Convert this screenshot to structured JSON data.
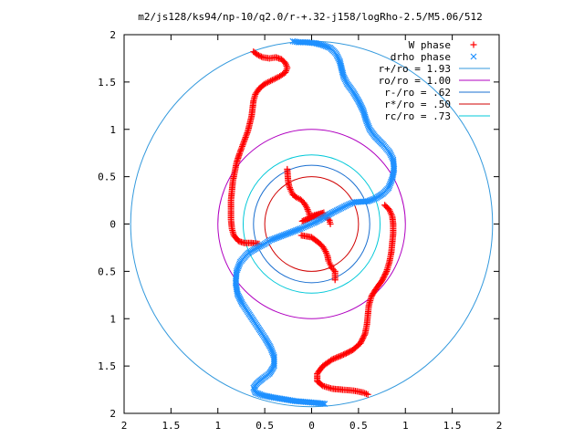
{
  "chart_data": {
    "type": "scatter",
    "title": "m2/js128/ks94/np-10/q2.0/r-+.32-j158/logRho-2.5/M5.06/512",
    "xlim": [
      -2,
      2
    ],
    "ylim": [
      -2,
      2
    ],
    "x_tick_labels": [
      "2",
      "1.5",
      "1",
      "0.5",
      "0",
      "0.5",
      "1",
      "1.5",
      "2"
    ],
    "y_tick_labels": [
      "2",
      "1.5",
      "1",
      "0.5",
      "0",
      "0.5",
      "1",
      "1.5",
      "2"
    ],
    "grid": false,
    "legend_position": "top-right",
    "colors": {
      "w_phase": "#ff0000",
      "drho_phase": "#1e90ff",
      "r_plus": "#3399dd",
      "ro": "#b000c0",
      "r_minus": "#1a6fd0",
      "r_star": "#d00000",
      "rc": "#00c8d8"
    },
    "circles": [
      {
        "label": "r+/ro = 1.93",
        "radius": 1.93
      },
      {
        "label": "ro/ro = 1.00",
        "radius": 1.0
      },
      {
        "label": "r-/ro = .62",
        "radius": 0.62
      },
      {
        "label": "r*/ro = .50",
        "radius": 0.5
      },
      {
        "label": "rc/ro = .73",
        "radius": 0.73
      }
    ],
    "series": [
      {
        "name": "W phase",
        "marker": "+",
        "points": [
          [
            -0.62,
            1.82
          ],
          [
            -0.58,
            1.79
          ],
          [
            -0.52,
            1.76
          ],
          [
            -0.45,
            1.75
          ],
          [
            -0.38,
            1.76
          ],
          [
            -0.32,
            1.74
          ],
          [
            -0.28,
            1.7
          ],
          [
            -0.26,
            1.65
          ],
          [
            -0.28,
            1.6
          ],
          [
            -0.34,
            1.56
          ],
          [
            -0.42,
            1.52
          ],
          [
            -0.5,
            1.48
          ],
          [
            -0.56,
            1.43
          ],
          [
            -0.6,
            1.37
          ],
          [
            -0.62,
            1.3
          ],
          [
            -0.63,
            1.22
          ],
          [
            -0.64,
            1.14
          ],
          [
            -0.66,
            1.06
          ],
          [
            -0.68,
            0.98
          ],
          [
            -0.71,
            0.9
          ],
          [
            -0.74,
            0.82
          ],
          [
            -0.77,
            0.74
          ],
          [
            -0.8,
            0.65
          ],
          [
            -0.82,
            0.55
          ],
          [
            -0.84,
            0.45
          ],
          [
            -0.85,
            0.35
          ],
          [
            -0.86,
            0.25
          ],
          [
            -0.86,
            0.15
          ],
          [
            -0.86,
            0.05
          ],
          [
            -0.85,
            -0.05
          ],
          [
            -0.83,
            -0.12
          ],
          [
            -0.78,
            -0.18
          ],
          [
            -0.72,
            -0.2
          ],
          [
            -0.64,
            -0.2
          ],
          [
            -0.56,
            -0.21
          ],
          [
            -0.26,
            0.58
          ],
          [
            -0.25,
            0.45
          ],
          [
            -0.24,
            0.4
          ],
          [
            -0.22,
            0.35
          ],
          [
            -0.2,
            0.31
          ],
          [
            -0.16,
            0.28
          ],
          [
            -0.12,
            0.26
          ],
          [
            -0.08,
            0.22
          ],
          [
            -0.05,
            0.17
          ],
          [
            -0.03,
            0.12
          ],
          [
            -0.02,
            0.08
          ],
          [
            0.13,
            0.12
          ],
          [
            -0.1,
            0.03
          ],
          [
            -0.05,
            0.05
          ],
          [
            0.0,
            0.07
          ],
          [
            0.05,
            0.09
          ],
          [
            0.1,
            0.1
          ],
          [
            0.15,
            0.08
          ],
          [
            0.19,
            0.04
          ],
          [
            0.2,
            0.0
          ],
          [
            -0.11,
            -0.12
          ],
          [
            0.0,
            -0.14
          ],
          [
            0.04,
            -0.17
          ],
          [
            0.08,
            -0.2
          ],
          [
            0.12,
            -0.24
          ],
          [
            0.15,
            -0.29
          ],
          [
            0.17,
            -0.34
          ],
          [
            0.18,
            -0.39
          ],
          [
            0.2,
            -0.43
          ],
          [
            0.22,
            -0.47
          ],
          [
            0.25,
            -0.5
          ],
          [
            0.25,
            -0.59
          ],
          [
            0.78,
            0.2
          ],
          [
            0.83,
            0.15
          ],
          [
            0.86,
            0.08
          ],
          [
            0.87,
            0.0
          ],
          [
            0.87,
            -0.1
          ],
          [
            0.86,
            -0.2
          ],
          [
            0.85,
            -0.3
          ],
          [
            0.83,
            -0.4
          ],
          [
            0.8,
            -0.5
          ],
          [
            0.75,
            -0.6
          ],
          [
            0.69,
            -0.68
          ],
          [
            0.64,
            -0.76
          ],
          [
            0.61,
            -0.86
          ],
          [
            0.6,
            -0.96
          ],
          [
            0.59,
            -1.06
          ],
          [
            0.57,
            -1.16
          ],
          [
            0.52,
            -1.26
          ],
          [
            0.44,
            -1.33
          ],
          [
            0.34,
            -1.38
          ],
          [
            0.22,
            -1.43
          ],
          [
            0.12,
            -1.5
          ],
          [
            0.06,
            -1.58
          ],
          [
            0.06,
            -1.66
          ],
          [
            0.12,
            -1.71
          ],
          [
            0.22,
            -1.74
          ],
          [
            0.33,
            -1.75
          ],
          [
            0.45,
            -1.76
          ],
          [
            0.55,
            -1.78
          ],
          [
            0.6,
            -1.8
          ]
        ]
      },
      {
        "name": "drho phase",
        "marker": "x",
        "points": [
          [
            -0.2,
            1.93
          ],
          [
            -0.14,
            1.92
          ],
          [
            -0.06,
            1.92
          ],
          [
            0.04,
            1.91
          ],
          [
            0.12,
            1.89
          ],
          [
            0.2,
            1.86
          ],
          [
            0.26,
            1.8
          ],
          [
            0.3,
            1.72
          ],
          [
            0.32,
            1.64
          ],
          [
            0.34,
            1.56
          ],
          [
            0.38,
            1.48
          ],
          [
            0.44,
            1.4
          ],
          [
            0.5,
            1.3
          ],
          [
            0.55,
            1.2
          ],
          [
            0.58,
            1.1
          ],
          [
            0.62,
            1.0
          ],
          [
            0.68,
            0.92
          ],
          [
            0.76,
            0.84
          ],
          [
            0.83,
            0.76
          ],
          [
            0.87,
            0.68
          ],
          [
            0.88,
            0.58
          ],
          [
            0.86,
            0.48
          ],
          [
            0.82,
            0.38
          ],
          [
            0.76,
            0.32
          ],
          [
            0.68,
            0.27
          ],
          [
            0.6,
            0.24
          ],
          [
            0.45,
            0.23
          ],
          [
            0.38,
            0.2
          ],
          [
            0.3,
            0.16
          ],
          [
            0.22,
            0.12
          ],
          [
            0.15,
            0.08
          ],
          [
            0.08,
            0.04
          ],
          [
            0.02,
            0.01
          ],
          [
            -0.05,
            -0.02
          ],
          [
            -0.12,
            -0.05
          ],
          [
            -0.2,
            -0.08
          ],
          [
            -0.28,
            -0.11
          ],
          [
            -0.36,
            -0.14
          ],
          [
            -0.44,
            -0.17
          ],
          [
            -0.5,
            -0.21
          ],
          [
            -0.58,
            -0.25
          ],
          [
            -0.68,
            -0.31
          ],
          [
            -0.76,
            -0.4
          ],
          [
            -0.8,
            -0.5
          ],
          [
            -0.81,
            -0.62
          ],
          [
            -0.79,
            -0.74
          ],
          [
            -0.74,
            -0.84
          ],
          [
            -0.68,
            -0.93
          ],
          [
            -0.62,
            -1.02
          ],
          [
            -0.56,
            -1.11
          ],
          [
            -0.5,
            -1.2
          ],
          [
            -0.44,
            -1.3
          ],
          [
            -0.4,
            -1.4
          ],
          [
            -0.4,
            -1.5
          ],
          [
            -0.45,
            -1.58
          ],
          [
            -0.52,
            -1.63
          ],
          [
            -0.58,
            -1.68
          ],
          [
            -0.62,
            -1.73
          ],
          [
            -0.6,
            -1.78
          ],
          [
            -0.52,
            -1.81
          ],
          [
            -0.42,
            -1.83
          ],
          [
            -0.3,
            -1.85
          ],
          [
            -0.18,
            -1.87
          ],
          [
            -0.06,
            -1.88
          ],
          [
            0.06,
            -1.89
          ],
          [
            0.14,
            -1.9
          ]
        ]
      }
    ]
  }
}
